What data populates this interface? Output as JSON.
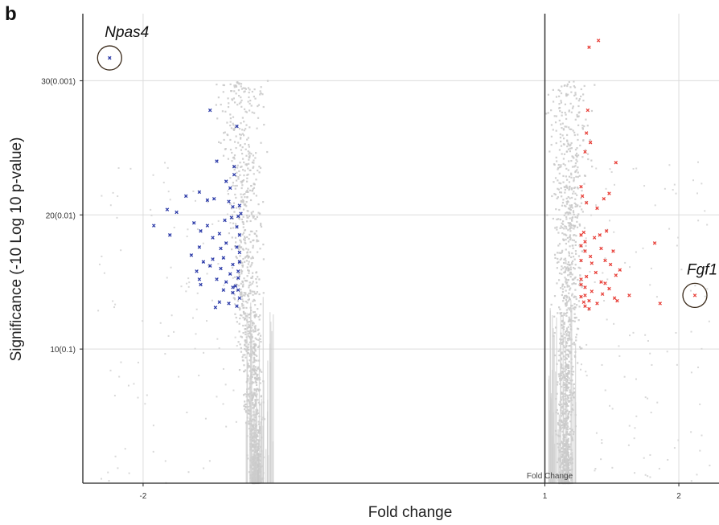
{
  "panel_letter": "b",
  "chart_data": {
    "type": "scatter",
    "subtype": "volcano",
    "title": "",
    "xlabel": "Fold change",
    "ylabel": "Significance (-10 Log 10 p-value)",
    "inner_label": "Fold Change",
    "xlim": [
      -2.45,
      2.3
    ],
    "ylim": [
      0,
      35
    ],
    "x_ticks": [
      {
        "value": -2,
        "label": "-2"
      },
      {
        "value": 1,
        "label": "1"
      },
      {
        "value": 2,
        "label": "2"
      }
    ],
    "y_ticks": [
      {
        "value": 10,
        "label": "10(0.1)"
      },
      {
        "value": 20,
        "label": "20(0.01)"
      },
      {
        "value": 30,
        "label": "30(0.001)"
      }
    ],
    "grid": true,
    "center_line_x": 1,
    "colors": {
      "down": "#2b3aa8",
      "up": "#e8413a",
      "background": "#c8c8c8",
      "grid": "#dcdcdc",
      "axis": "#222222"
    },
    "annotations": [
      {
        "label": "Npas4",
        "x": -2.25,
        "y": 31.7
      },
      {
        "label": "Fgf1",
        "x": 2.12,
        "y": 14.0
      }
    ],
    "series": [
      {
        "group": "down",
        "points": [
          [
            -2.25,
            31.7
          ],
          [
            -1.5,
            27.8
          ],
          [
            -1.3,
            26.6
          ],
          [
            -1.45,
            24.0
          ],
          [
            -1.32,
            23.6
          ],
          [
            -1.38,
            22.5
          ],
          [
            -1.35,
            22.0
          ],
          [
            -1.32,
            23.0
          ],
          [
            -1.75,
            20.2
          ],
          [
            -1.82,
            20.4
          ],
          [
            -1.68,
            21.4
          ],
          [
            -1.58,
            21.7
          ],
          [
            -1.52,
            21.1
          ],
          [
            -1.47,
            21.2
          ],
          [
            -1.36,
            21.0
          ],
          [
            -1.33,
            20.6
          ],
          [
            -1.28,
            20.7
          ],
          [
            -1.27,
            20.1
          ],
          [
            -1.92,
            19.2
          ],
          [
            -1.62,
            19.4
          ],
          [
            -1.57,
            18.8
          ],
          [
            -1.52,
            19.2
          ],
          [
            -1.43,
            18.6
          ],
          [
            -1.39,
            19.6
          ],
          [
            -1.34,
            19.8
          ],
          [
            -1.29,
            19.9
          ],
          [
            -1.3,
            19.1
          ],
          [
            -1.28,
            18.5
          ],
          [
            -1.8,
            18.5
          ],
          [
            -1.58,
            17.6
          ],
          [
            -1.48,
            18.3
          ],
          [
            -1.42,
            17.5
          ],
          [
            -1.38,
            17.9
          ],
          [
            -1.3,
            17.6
          ],
          [
            -1.28,
            17.2
          ],
          [
            -1.64,
            17.0
          ],
          [
            -1.55,
            16.5
          ],
          [
            -1.48,
            16.7
          ],
          [
            -1.4,
            16.8
          ],
          [
            -1.33,
            16.3
          ],
          [
            -1.28,
            16.5
          ],
          [
            -1.6,
            15.8
          ],
          [
            -1.5,
            16.2
          ],
          [
            -1.42,
            16.0
          ],
          [
            -1.35,
            15.6
          ],
          [
            -1.29,
            15.8
          ],
          [
            -1.58,
            15.2
          ],
          [
            -1.45,
            15.2
          ],
          [
            -1.38,
            15.0
          ],
          [
            -1.33,
            14.6
          ],
          [
            -1.29,
            14.4
          ],
          [
            -1.4,
            14.4
          ],
          [
            -1.33,
            14.2
          ],
          [
            -1.28,
            13.8
          ],
          [
            -1.43,
            13.5
          ],
          [
            -1.36,
            13.4
          ],
          [
            -1.3,
            13.2
          ],
          [
            -1.46,
            13.1
          ],
          [
            -1.57,
            14.8
          ],
          [
            -1.31,
            14.7
          ],
          [
            -1.29,
            15.3
          ]
        ]
      },
      {
        "group": "up",
        "points": [
          [
            1.4,
            33.0
          ],
          [
            1.33,
            32.5
          ],
          [
            1.32,
            27.8
          ],
          [
            1.31,
            26.1
          ],
          [
            1.34,
            25.4
          ],
          [
            1.3,
            24.7
          ],
          [
            1.53,
            23.9
          ],
          [
            1.27,
            22.1
          ],
          [
            1.28,
            21.4
          ],
          [
            1.31,
            20.9
          ],
          [
            1.48,
            21.6
          ],
          [
            1.44,
            21.2
          ],
          [
            1.39,
            20.5
          ],
          [
            1.27,
            18.5
          ],
          [
            1.29,
            18.7
          ],
          [
            1.3,
            18.0
          ],
          [
            1.37,
            18.3
          ],
          [
            1.41,
            18.5
          ],
          [
            1.46,
            18.8
          ],
          [
            1.82,
            17.9
          ],
          [
            1.27,
            17.7
          ],
          [
            1.3,
            17.3
          ],
          [
            1.34,
            16.9
          ],
          [
            1.42,
            17.5
          ],
          [
            1.51,
            17.3
          ],
          [
            1.27,
            16.6
          ],
          [
            1.35,
            16.4
          ],
          [
            1.45,
            16.6
          ],
          [
            1.49,
            16.3
          ],
          [
            1.56,
            15.9
          ],
          [
            1.27,
            15.2
          ],
          [
            1.31,
            15.4
          ],
          [
            1.38,
            15.7
          ],
          [
            1.42,
            15.0
          ],
          [
            1.53,
            15.5
          ],
          [
            1.27,
            14.8
          ],
          [
            1.3,
            14.6
          ],
          [
            1.35,
            14.3
          ],
          [
            1.45,
            14.9
          ],
          [
            1.48,
            14.5
          ],
          [
            1.27,
            13.9
          ],
          [
            1.3,
            14.0
          ],
          [
            1.33,
            13.6
          ],
          [
            1.39,
            13.4
          ],
          [
            1.43,
            14.1
          ],
          [
            1.52,
            13.8
          ],
          [
            1.54,
            13.6
          ],
          [
            1.63,
            14.0
          ],
          [
            1.3,
            13.2
          ],
          [
            1.33,
            13.0
          ],
          [
            1.86,
            13.4
          ],
          [
            2.12,
            14.0
          ],
          [
            1.29,
            13.5
          ]
        ]
      }
    ]
  }
}
